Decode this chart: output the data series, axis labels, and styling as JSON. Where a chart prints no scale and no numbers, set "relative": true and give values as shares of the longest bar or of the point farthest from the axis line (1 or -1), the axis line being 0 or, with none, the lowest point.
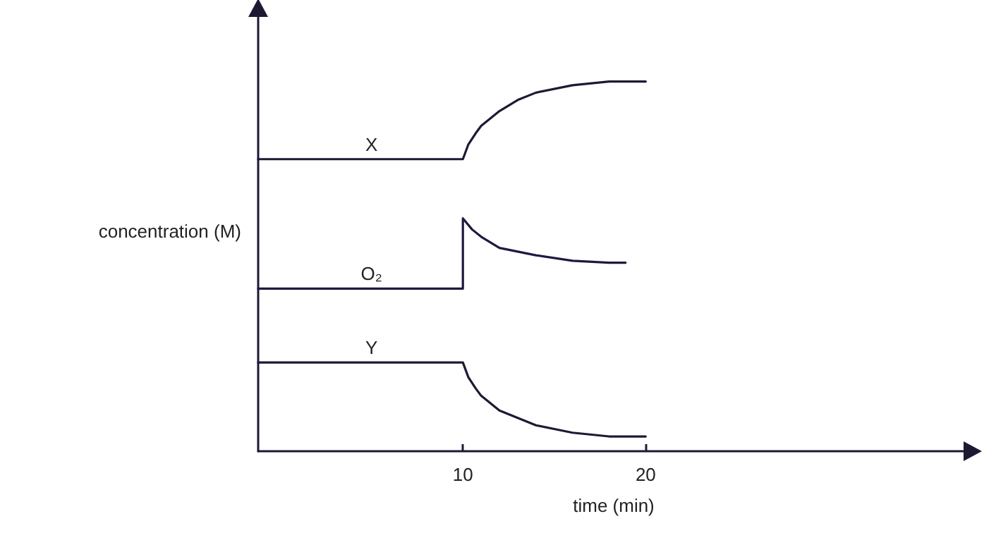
{
  "chart_data": {
    "type": "line",
    "relative": true,
    "xlabel": "time (min)",
    "ylabel": "concentration (M)",
    "xlim": [
      -1.2,
      37.7
    ],
    "xticks": [
      10,
      20
    ],
    "legend": false,
    "grid": false,
    "marker": "none",
    "line_style": "solid",
    "tick_labels": "x",
    "series": [
      {
        "name": "X",
        "color": "#1c1a33",
        "x": [
          -1.2,
          5,
          10,
          10.3,
          10.7,
          11,
          12,
          13,
          14,
          16,
          18,
          20
        ],
        "values": [
          0.79,
          0.79,
          0.79,
          0.83,
          0.86,
          0.88,
          0.92,
          0.95,
          0.97,
          0.99,
          1.0,
          1.0
        ]
      },
      {
        "name": "O₂",
        "color": "#1c1a40",
        "x": [
          -1.2,
          5,
          10,
          10,
          10.5,
          11,
          12,
          13,
          14,
          16,
          18,
          18.9
        ],
        "values": [
          0.44,
          0.44,
          0.44,
          0.63,
          0.6,
          0.58,
          0.55,
          0.54,
          0.53,
          0.515,
          0.51,
          0.51
        ]
      },
      {
        "name": "Y",
        "color": "#1c1a33",
        "x": [
          -1.2,
          5,
          10,
          10.3,
          10.7,
          11,
          12,
          13,
          14,
          16,
          18,
          20
        ],
        "values": [
          0.24,
          0.24,
          0.24,
          0.2,
          0.17,
          0.15,
          0.11,
          0.09,
          0.07,
          0.05,
          0.04,
          0.04
        ]
      }
    ]
  }
}
